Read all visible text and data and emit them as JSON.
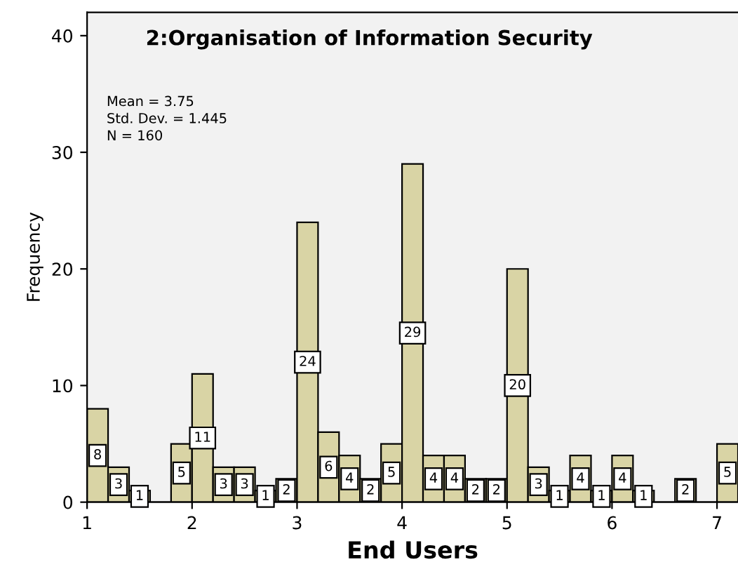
{
  "chart_data": {
    "type": "histogram",
    "title": "2:Organisation of Information Security",
    "xlabel": "End Users",
    "ylabel": "Frequency",
    "bins": [
      1.0,
      1.2,
      1.4,
      1.6,
      1.8,
      2.0,
      2.2,
      2.4,
      2.6,
      2.8,
      3.0,
      3.2,
      3.4,
      3.6,
      3.8,
      4.0,
      4.2,
      4.4,
      4.6,
      4.8,
      5.0,
      5.2,
      5.4,
      5.6,
      5.8,
      6.0,
      6.2,
      6.4,
      6.6,
      6.8,
      7.0,
      7.2
    ],
    "values": [
      8,
      3,
      1,
      0,
      5,
      11,
      3,
      3,
      1,
      2,
      24,
      6,
      4,
      2,
      5,
      29,
      4,
      4,
      2,
      2,
      20,
      3,
      1,
      4,
      1,
      4,
      1,
      0,
      2,
      0,
      5
    ],
    "value_labels": [
      "8",
      "3",
      "1",
      null,
      "5",
      "11",
      "3",
      "3",
      "1",
      "2",
      "24",
      "6",
      "4",
      "2",
      "5",
      "29",
      "4",
      "4",
      "2",
      "2",
      "20",
      "3",
      "1",
      "4",
      "1",
      "4",
      "1",
      null,
      "2",
      null,
      "5"
    ],
    "color": "#d9d4a5",
    "annotations": [
      "Mean = 3.75",
      "Std. Dev. = 1.445",
      "N = 160"
    ],
    "xlim": [
      1,
      7.2
    ],
    "xticks": [
      1,
      2,
      3,
      4,
      5,
      6,
      7
    ],
    "ylim": [
      0,
      42
    ],
    "yticks": [
      0,
      10,
      20,
      30,
      40
    ],
    "grid": false,
    "legend": false
  }
}
